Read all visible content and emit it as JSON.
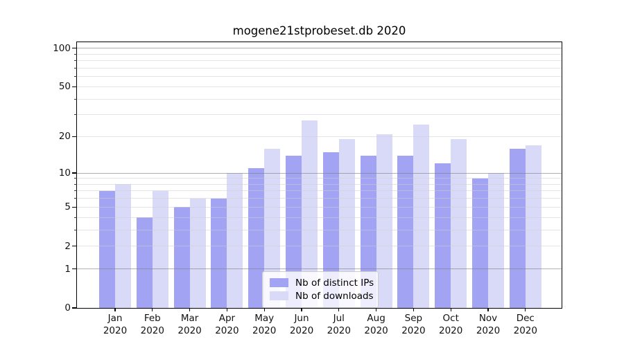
{
  "chart_data": {
    "type": "bar",
    "title": "mogene21stprobeset.db 2020",
    "categories": [
      "Jan",
      "Feb",
      "Mar",
      "Apr",
      "May",
      "Jun",
      "Jul",
      "Aug",
      "Sep",
      "Oct",
      "Nov",
      "Dec"
    ],
    "x_tick_second_line": "2020",
    "series": [
      {
        "name": "Nb of distinct IPs",
        "color": "#a3a3f3",
        "values": [
          7,
          4,
          5,
          6,
          11,
          14,
          15,
          14,
          14,
          12,
          9,
          16
        ]
      },
      {
        "name": "Nb of downloads",
        "color": "#d9d9f8",
        "values": [
          8,
          7,
          6,
          10,
          16,
          27,
          19,
          21,
          25,
          19,
          10,
          17
        ]
      }
    ],
    "yscale": "log1p",
    "ylim": [
      0,
      112
    ],
    "yticks": [
      0,
      1,
      2,
      5,
      10,
      20,
      50,
      100
    ],
    "ytick_labels": [
      "0",
      "1",
      "2",
      "5",
      "10",
      "20",
      "50",
      "100"
    ],
    "minor_gridlines": [
      3,
      4,
      6,
      7,
      8,
      9,
      30,
      40,
      60,
      70,
      80,
      90
    ],
    "major_gridlines": [
      1,
      2,
      5,
      10,
      20,
      50,
      100
    ],
    "decade_gridlines": [
      1,
      10,
      100
    ],
    "grid": true,
    "legend_position": "bottom-center",
    "xlabel": "",
    "ylabel": ""
  },
  "colors": {
    "ips_bar": "#a3a3f3",
    "downloads_bar": "#d9d9f8",
    "grid_minor": "#e6e6e6",
    "grid_decade": "#b0b0b0",
    "spine": "#000000",
    "background": "#ffffff",
    "legend_border": "#cccccc"
  }
}
